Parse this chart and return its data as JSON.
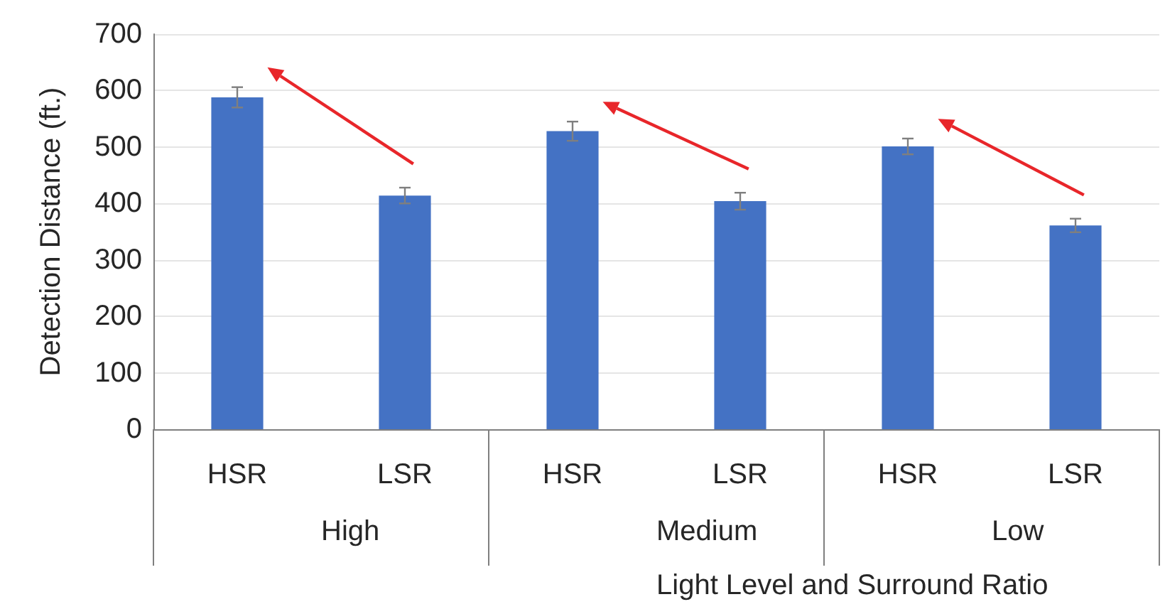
{
  "chart_data": {
    "type": "bar",
    "xlabel": "Light Level and Surround Ratio",
    "ylabel": "Detection Distance (ft.)",
    "categories": [
      "HSR",
      "LSR",
      "HSR",
      "LSR",
      "HSR",
      "LSR"
    ],
    "values": [
      588,
      414,
      528,
      404,
      501,
      361
    ],
    "errors": [
      18,
      14,
      17,
      15,
      14,
      12
    ],
    "color": "#4472c4",
    "annotations": [
      "High",
      "Medium",
      "Low"
    ],
    "ylim": [
      0,
      700
    ],
    "yticks": [
      0,
      100,
      200,
      300,
      400,
      500,
      600,
      700
    ],
    "grid": "y"
  }
}
